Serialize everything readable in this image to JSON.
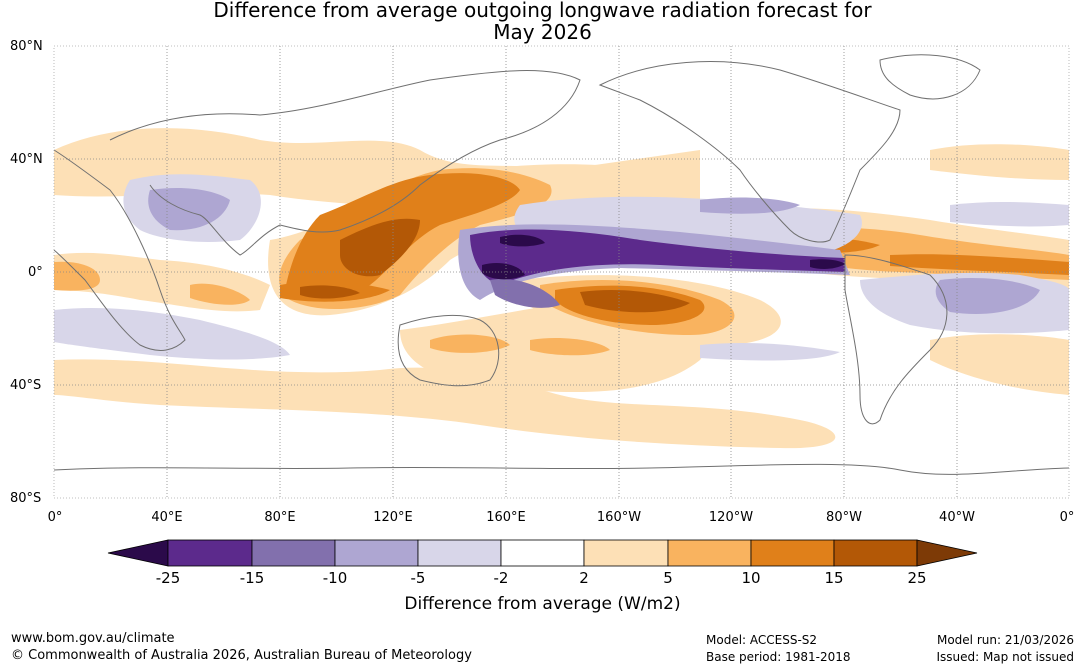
{
  "title": {
    "line1": "Difference from average outgoing longwave radiation forecast for",
    "line2": "May 2026"
  },
  "axes": {
    "lat_labels": [
      "80°N",
      "40°N",
      "0°",
      "40°S",
      "80°S"
    ],
    "lon_labels": [
      "0°",
      "40°E",
      "80°E",
      "120°E",
      "160°E",
      "160°W",
      "120°W",
      "80°W",
      "40°W",
      "0°"
    ]
  },
  "colorbar": {
    "title": "Difference from average (W/m2)",
    "ticks": [
      "-25",
      "-15",
      "-10",
      "-5",
      "-2",
      "2",
      "5",
      "10",
      "15",
      "25"
    ],
    "colors": [
      "#2b0a4a",
      "#5c2a8c",
      "#8270ad",
      "#aea6d2",
      "#d8d6e9",
      "#ffffff",
      "#fde0b6",
      "#f9b35f",
      "#e0801a",
      "#b35806",
      "#7d3a06"
    ]
  },
  "footer": {
    "url": "www.bom.gov.au/climate",
    "copyright": "© Commonwealth of Australia 2026, Australian Bureau of Meteorology",
    "model": "Model: ACCESS-S2",
    "base_period": "Base period: 1981-2018",
    "model_run": "Model run: 21/03/2026",
    "issued": "Issued: Map not issued"
  }
}
